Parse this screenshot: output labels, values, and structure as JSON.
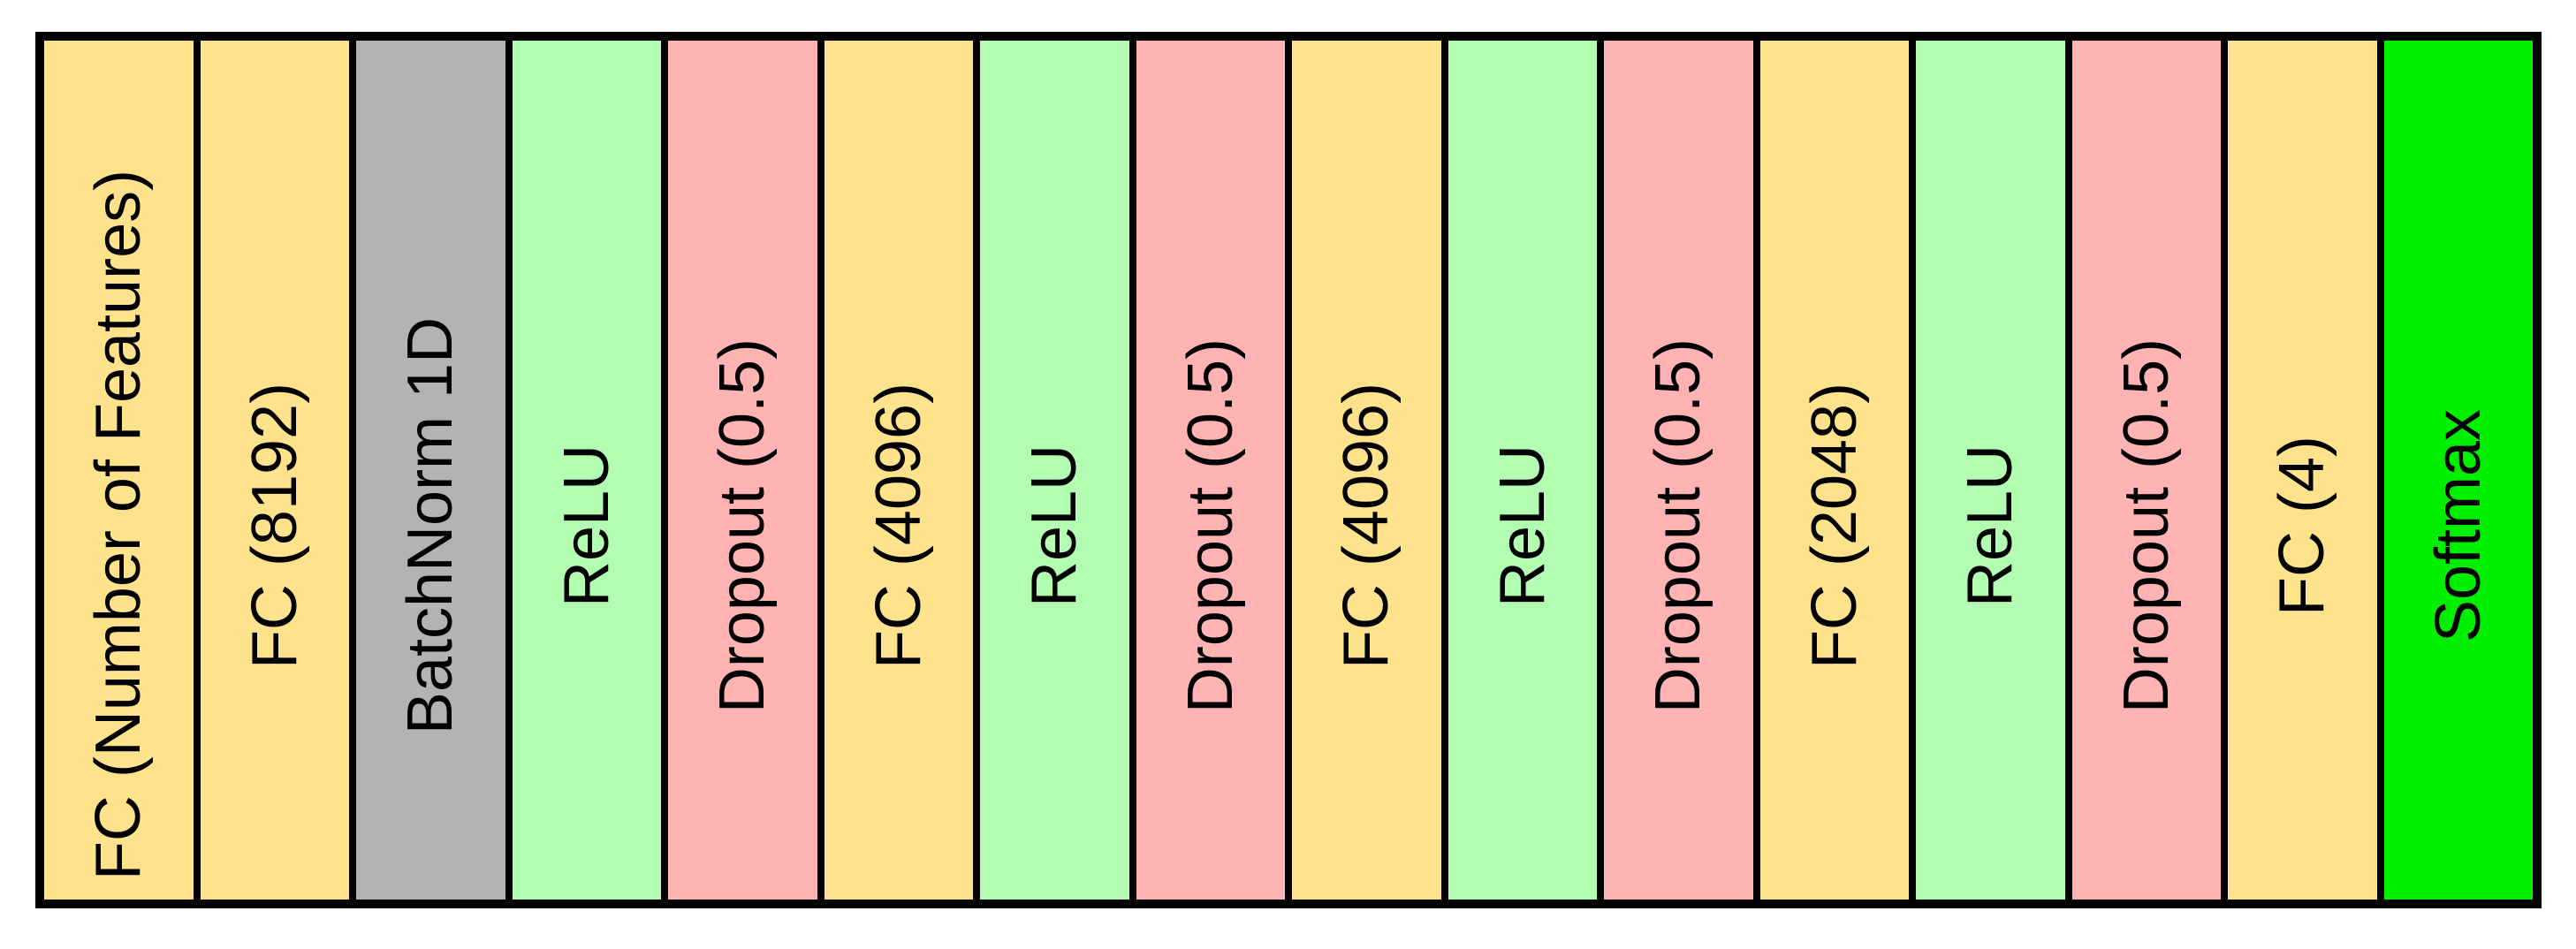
{
  "layers": [
    {
      "label": "FC (Number of Features)",
      "type": "fc",
      "color": "#FFE38C"
    },
    {
      "label": "FC (8192)",
      "type": "fc",
      "color": "#FFE38C"
    },
    {
      "label": "BatchNorm 1D",
      "type": "batchnorm",
      "color": "#B3B3B3"
    },
    {
      "label": "ReLU",
      "type": "relu",
      "color": "#B3FDB3"
    },
    {
      "label": "Dropout (0.5)",
      "type": "dropout",
      "color": "#FFB3B3"
    },
    {
      "label": "FC (4096)",
      "type": "fc",
      "color": "#FFE38C"
    },
    {
      "label": "ReLU",
      "type": "relu",
      "color": "#B3FDB3"
    },
    {
      "label": "Dropout (0.5)",
      "type": "dropout",
      "color": "#FFB3B3"
    },
    {
      "label": "FC (4096)",
      "type": "fc",
      "color": "#FFE38C"
    },
    {
      "label": "ReLU",
      "type": "relu",
      "color": "#B3FDB3"
    },
    {
      "label": "Dropout (0.5)",
      "type": "dropout",
      "color": "#FFB3B3"
    },
    {
      "label": "FC (2048)",
      "type": "fc",
      "color": "#FFE38C"
    },
    {
      "label": "ReLU",
      "type": "relu",
      "color": "#B3FDB3"
    },
    {
      "label": "Dropout (0.5)",
      "type": "dropout",
      "color": "#FFB3B3"
    },
    {
      "label": "FC (4)",
      "type": "fc",
      "color": "#FFE38C"
    },
    {
      "label": "Softmax",
      "type": "softmax",
      "color": "#00EE00"
    }
  ]
}
